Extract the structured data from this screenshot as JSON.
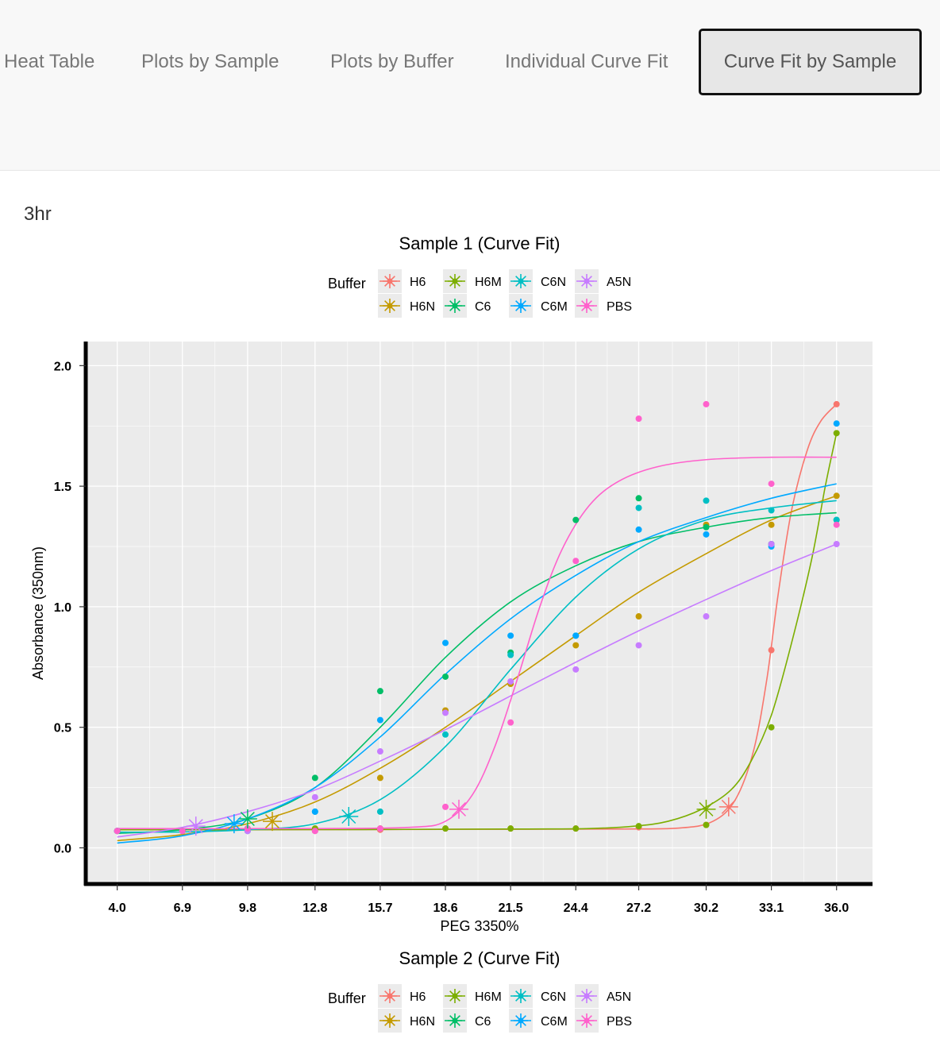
{
  "tabs": [
    {
      "label": "Heat Table",
      "active": false
    },
    {
      "label": "Plots by Sample",
      "active": false
    },
    {
      "label": "Plots by Buffer",
      "active": false
    },
    {
      "label": "Individual Curve Fit",
      "active": false
    },
    {
      "label": "Curve Fit by Sample",
      "active": true
    }
  ],
  "section_title": "3hr",
  "legend": {
    "title": "Buffer",
    "entries": [
      {
        "name": "H6",
        "color": "#F8766D"
      },
      {
        "name": "H6N",
        "color": "#C49A00"
      },
      {
        "name": "H6M",
        "color": "#7CAE00"
      },
      {
        "name": "C6",
        "color": "#00BE67"
      },
      {
        "name": "C6N",
        "color": "#00BFC4"
      },
      {
        "name": "C6M",
        "color": "#00A9FF"
      },
      {
        "name": "A5N",
        "color": "#C77CFF"
      },
      {
        "name": "PBS",
        "color": "#FF61CC"
      }
    ]
  },
  "chart_data": [
    {
      "type": "scatter",
      "title": "Sample 1 (Curve Fit)",
      "xlabel": "PEG 3350%",
      "ylabel": "Absorbance (350nm)",
      "x_ticks": [
        "4.0",
        "6.9",
        "9.8",
        "12.8",
        "15.7",
        "18.6",
        "21.5",
        "24.4",
        "27.2",
        "30.2",
        "33.1",
        "36.0"
      ],
      "y_ticks": [
        "0.0",
        "0.5",
        "1.0",
        "1.5",
        "2.0"
      ],
      "xlim": [
        2.6,
        37.6
      ],
      "ylim": [
        -0.15,
        2.1
      ],
      "grid": true,
      "legend_position": "top",
      "x": [
        4.0,
        6.9,
        9.8,
        12.8,
        15.7,
        18.6,
        21.5,
        24.4,
        27.2,
        30.2,
        33.1,
        36.0
      ],
      "series": [
        {
          "name": "H6",
          "points": [
            0.07,
            0.07,
            0.07,
            0.07,
            0.075,
            0.08,
            0.08,
            0.08,
            0.085,
            0.095,
            0.82,
            1.84
          ],
          "midpoint": [
            31.2,
            0.17
          ],
          "fit": [
            [
              4.0,
              0.075
            ],
            [
              10,
              0.075
            ],
            [
              20,
              0.077
            ],
            [
              26,
              0.078
            ],
            [
              29,
              0.082
            ],
            [
              30.5,
              0.11
            ],
            [
              31.5,
              0.2
            ],
            [
              32.3,
              0.4
            ],
            [
              32.9,
              0.7
            ],
            [
              33.4,
              1.05
            ],
            [
              34,
              1.4
            ],
            [
              34.7,
              1.65
            ],
            [
              35.3,
              1.77
            ],
            [
              36.0,
              1.84
            ]
          ]
        },
        {
          "name": "H6N",
          "points": [
            0.07,
            0.07,
            0.08,
            0.08,
            0.29,
            0.57,
            0.68,
            0.84,
            0.96,
            1.34,
            1.34,
            1.46
          ],
          "midpoint": [
            10.9,
            0.11
          ],
          "fit": [
            [
              4.0,
              0.03
            ],
            [
              6.9,
              0.055
            ],
            [
              9.8,
              0.1
            ],
            [
              12.8,
              0.19
            ],
            [
              15.7,
              0.33
            ],
            [
              18.6,
              0.5
            ],
            [
              21.5,
              0.69
            ],
            [
              24.4,
              0.88
            ],
            [
              27.2,
              1.06
            ],
            [
              30.2,
              1.22
            ],
            [
              33.1,
              1.36
            ],
            [
              36.0,
              1.46
            ]
          ]
        },
        {
          "name": "H6M",
          "points": [
            0.07,
            0.07,
            0.08,
            0.08,
            0.08,
            0.08,
            0.08,
            0.08,
            0.09,
            0.095,
            0.5,
            1.72
          ],
          "midpoint": [
            30.2,
            0.16
          ],
          "fit": [
            [
              4.0,
              0.075
            ],
            [
              15,
              0.076
            ],
            [
              22,
              0.078
            ],
            [
              25,
              0.08
            ],
            [
              27,
              0.09
            ],
            [
              28.5,
              0.11
            ],
            [
              30,
              0.16
            ],
            [
              31.3,
              0.24
            ],
            [
              32.2,
              0.36
            ],
            [
              33.1,
              0.55
            ],
            [
              34,
              0.85
            ],
            [
              34.9,
              1.2
            ],
            [
              35.5,
              1.5
            ],
            [
              36.0,
              1.72
            ]
          ]
        },
        {
          "name": "C6",
          "points": [
            0.07,
            0.07,
            0.08,
            0.29,
            0.65,
            0.71,
            0.81,
            1.36,
            1.45,
            1.33,
            1.26,
            1.36
          ],
          "midpoint": [
            9.8,
            0.12
          ],
          "fit": [
            [
              4.0,
              0.06
            ],
            [
              6.9,
              0.075
            ],
            [
              9.8,
              0.12
            ],
            [
              12.8,
              0.25
            ],
            [
              15.7,
              0.5
            ],
            [
              18.6,
              0.79
            ],
            [
              21.5,
              1.02
            ],
            [
              24.4,
              1.17
            ],
            [
              27.2,
              1.27
            ],
            [
              30.2,
              1.33
            ],
            [
              33.1,
              1.37
            ],
            [
              36.0,
              1.39
            ]
          ]
        },
        {
          "name": "C6N",
          "points": [
            0.07,
            0.07,
            0.08,
            0.15,
            0.15,
            0.47,
            0.8,
            0.88,
            1.41,
            1.44,
            1.4,
            1.36
          ],
          "midpoint": [
            14.3,
            0.13
          ],
          "fit": [
            [
              4.0,
              0.065
            ],
            [
              6.9,
              0.066
            ],
            [
              9.8,
              0.075
            ],
            [
              12.8,
              0.1
            ],
            [
              15.7,
              0.2
            ],
            [
              18.6,
              0.42
            ],
            [
              21.5,
              0.74
            ],
            [
              24.4,
              1.04
            ],
            [
              27.2,
              1.24
            ],
            [
              30.2,
              1.36
            ],
            [
              33.1,
              1.41
            ],
            [
              36.0,
              1.44
            ]
          ]
        },
        {
          "name": "C6M",
          "points": [
            0.07,
            0.07,
            0.07,
            0.15,
            0.53,
            0.85,
            0.88,
            0.88,
            1.32,
            1.3,
            1.25,
            1.76
          ],
          "midpoint": [
            9.2,
            0.1
          ],
          "fit": [
            [
              4.0,
              0.02
            ],
            [
              6.9,
              0.05
            ],
            [
              9.8,
              0.12
            ],
            [
              12.8,
              0.25
            ],
            [
              15.7,
              0.46
            ],
            [
              18.6,
              0.72
            ],
            [
              21.5,
              0.95
            ],
            [
              24.4,
              1.13
            ],
            [
              27.2,
              1.27
            ],
            [
              30.2,
              1.37
            ],
            [
              33.1,
              1.45
            ],
            [
              36.0,
              1.51
            ]
          ]
        },
        {
          "name": "A5N",
          "points": [
            0.07,
            0.07,
            0.07,
            0.21,
            0.4,
            0.56,
            0.69,
            0.74,
            0.84,
            0.96,
            1.26,
            1.26
          ],
          "midpoint": [
            7.5,
            0.09
          ],
          "fit": [
            [
              4.0,
              0.045
            ],
            [
              6.9,
              0.085
            ],
            [
              9.8,
              0.15
            ],
            [
              12.8,
              0.24
            ],
            [
              15.7,
              0.36
            ],
            [
              18.6,
              0.49
            ],
            [
              21.5,
              0.63
            ],
            [
              24.4,
              0.77
            ],
            [
              27.2,
              0.9
            ],
            [
              30.2,
              1.03
            ],
            [
              33.1,
              1.15
            ],
            [
              36.0,
              1.26
            ]
          ]
        },
        {
          "name": "PBS",
          "points": [
            0.07,
            0.07,
            0.08,
            0.07,
            0.08,
            0.17,
            0.52,
            1.19,
            1.78,
            1.84,
            1.51,
            1.34
          ],
          "midpoint": [
            19.2,
            0.16
          ],
          "fit": [
            [
              4.0,
              0.08
            ],
            [
              12.8,
              0.08
            ],
            [
              17,
              0.085
            ],
            [
              18.6,
              0.11
            ],
            [
              19.8,
              0.22
            ],
            [
              20.8,
              0.42
            ],
            [
              21.8,
              0.7
            ],
            [
              22.8,
              1.0
            ],
            [
              23.8,
              1.24
            ],
            [
              25,
              1.42
            ],
            [
              26.3,
              1.52
            ],
            [
              28,
              1.58
            ],
            [
              30.2,
              1.61
            ],
            [
              33.1,
              1.62
            ],
            [
              36.0,
              1.62
            ]
          ]
        }
      ]
    },
    {
      "type": "scatter",
      "title": "Sample 2 (Curve Fit)"
    }
  ]
}
